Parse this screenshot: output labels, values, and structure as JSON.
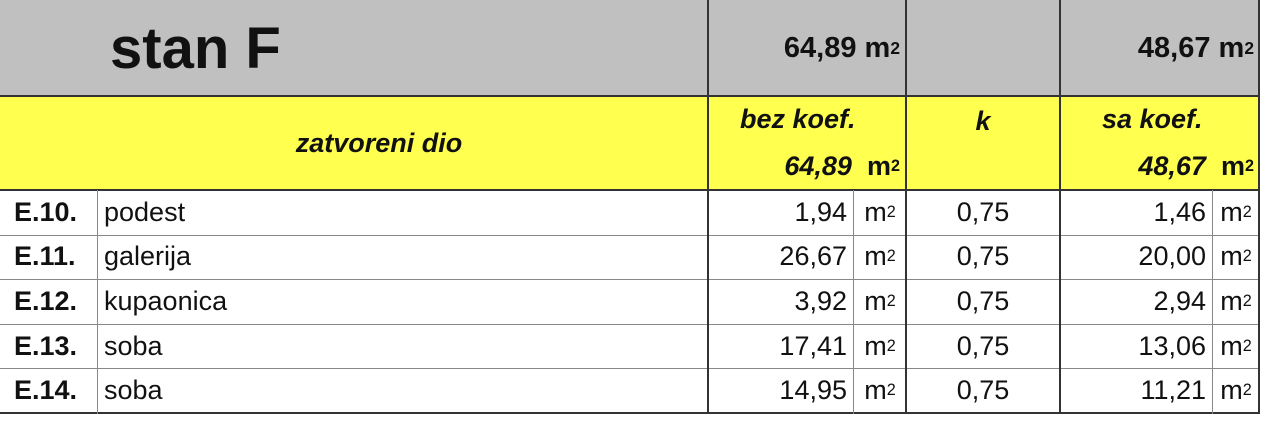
{
  "title": "stan F",
  "totals": {
    "bez_koef": "64,89",
    "sa_koef": "48,67",
    "unit": "m",
    "unit_sup": "2"
  },
  "subheader": {
    "section": "zatvoreni dio",
    "bez_koef_label": "bez koef.",
    "k_label": "k",
    "sa_koef_label": "sa koef.",
    "bez_koef_value": "64,89",
    "sa_koef_value": "48,67"
  },
  "rows": [
    {
      "code": "E.10.",
      "name": "podest",
      "area": "1,94",
      "k": "0,75",
      "area_k": "1,46"
    },
    {
      "code": "E.11.",
      "name": "galerija",
      "area": "26,67",
      "k": "0,75",
      "area_k": "20,00"
    },
    {
      "code": "E.12.",
      "name": "kupaonica",
      "area": "3,92",
      "k": "0,75",
      "area_k": "2,94"
    },
    {
      "code": "E.13.",
      "name": "soba",
      "area": "17,41",
      "k": "0,75",
      "area_k": "13,06"
    },
    {
      "code": "E.14.",
      "name": "soba",
      "area": "14,95",
      "k": "0,75",
      "area_k": "11,21"
    }
  ],
  "colors": {
    "header_gray": "#c0c0c0",
    "header_yellow": "#ffff50"
  }
}
